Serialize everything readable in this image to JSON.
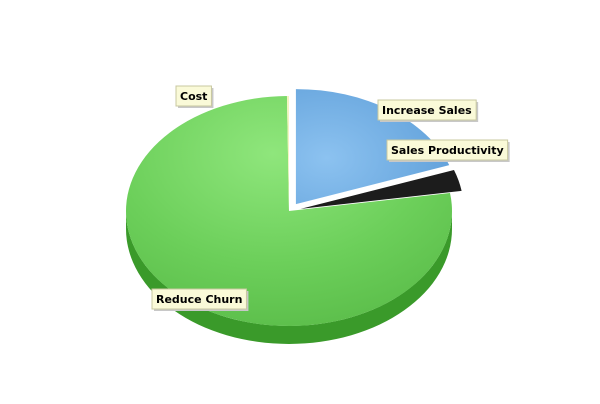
{
  "chart_data": {
    "type": "pie",
    "style": "3d-exploded",
    "title": "",
    "slices": [
      {
        "label": "Increase Sales",
        "value": 19.5,
        "color": "#6aaee6"
      },
      {
        "label": "Sales Productivity",
        "value": 3.0,
        "color": "#1c1c1c"
      },
      {
        "label": "Reduce Churn",
        "value": 77.3,
        "color": "#6ccf5a"
      },
      {
        "label": "Cost",
        "value": 0.2,
        "color": "#f4f4c0"
      }
    ],
    "legend": "none",
    "data_labels": "callout"
  }
}
